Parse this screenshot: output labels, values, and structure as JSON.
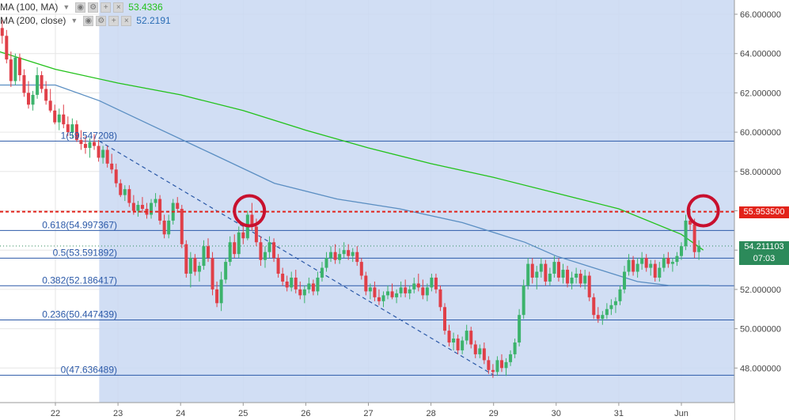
{
  "legend": [
    {
      "label": "MA (100, MA)",
      "value": "53.4336",
      "color": "#22c21a"
    },
    {
      "label": "MA (200, close)",
      "value": "52.2191",
      "color": "#2a6db5"
    }
  ],
  "price_tags": {
    "red": {
      "text": "55.953500",
      "color": "#e2231a"
    },
    "last": {
      "text": "54.211103",
      "color": "#2c8a5a"
    },
    "timer": {
      "text": "07:03",
      "color": "#2c8a5a"
    }
  },
  "chart_data": {
    "type": "candlestick",
    "y_axis": {
      "ticks": [
        48,
        50,
        52,
        54,
        56,
        58,
        60,
        62,
        64,
        66
      ],
      "tick_labels": [
        "48.000000",
        "50.000000",
        "52.000000",
        "54.000000",
        "56.000000",
        "58.000000",
        "60.000000",
        "62.000000",
        "64.000000",
        "66.000000"
      ]
    },
    "x_axis": {
      "ticks": [
        22,
        23,
        24,
        25,
        26,
        27,
        28,
        29,
        30,
        31,
        32
      ],
      "tick_labels": [
        "22",
        "23",
        "24",
        "25",
        "26",
        "27",
        "28",
        "29",
        "30",
        "31",
        "Jun"
      ],
      "range": [
        21.1,
        32.6
      ]
    },
    "ylim": [
      46.8,
      66.6
    ],
    "fibonacci": [
      {
        "label": "1(59.547208)",
        "value": 59.547208
      },
      {
        "label": "0.618(54.997367)",
        "value": 54.997367
      },
      {
        "label": "0.5(53.591892)",
        "value": 53.591892
      },
      {
        "label": "0.382(52.186417)",
        "value": 52.186417
      },
      {
        "label": "0.236(50.447439)",
        "value": 50.447439
      },
      {
        "label": "0(47.636489)",
        "value": 47.636489
      }
    ],
    "resistance_level": 55.9535,
    "trendline": {
      "start": [
        22.7,
        59.55
      ],
      "end": [
        29.0,
        47.64
      ]
    },
    "highlight_circles": [
      {
        "x": 25.1,
        "y": 56.0
      },
      {
        "x": 32.35,
        "y": 56.0
      }
    ],
    "fib_zone_start": 22.7,
    "series": [
      {
        "name": "MA (100, MA)",
        "color": "#22c21a",
        "points": [
          [
            21.1,
            64.1
          ],
          [
            22.0,
            63.2
          ],
          [
            23.0,
            62.5
          ],
          [
            24.0,
            61.9
          ],
          [
            25.0,
            61.1
          ],
          [
            26.0,
            60.1
          ],
          [
            27.0,
            59.2
          ],
          [
            28.0,
            58.4
          ],
          [
            29.0,
            57.7
          ],
          [
            30.0,
            56.9
          ],
          [
            31.0,
            56.1
          ],
          [
            32.0,
            54.8
          ],
          [
            32.35,
            54.0
          ]
        ]
      },
      {
        "name": "MA (200, close)",
        "color": "#5a8ec2",
        "points": [
          [
            21.1,
            62.4
          ],
          [
            22.0,
            62.4
          ],
          [
            22.7,
            61.6
          ],
          [
            23.5,
            60.4
          ],
          [
            24.5,
            58.9
          ],
          [
            25.5,
            57.4
          ],
          [
            26.5,
            56.6
          ],
          [
            27.5,
            56.1
          ],
          [
            28.5,
            55.4
          ],
          [
            29.5,
            54.4
          ],
          [
            30.0,
            53.7
          ],
          [
            30.7,
            53.0
          ],
          [
            31.3,
            52.4
          ],
          [
            31.8,
            52.2
          ],
          [
            32.45,
            52.2
          ]
        ]
      }
    ],
    "candles": [
      [
        21.15,
        65.3,
        65.7,
        64.5,
        64.9
      ],
      [
        21.22,
        64.9,
        65.2,
        63.5,
        63.7
      ],
      [
        21.29,
        63.7,
        64.1,
        62.3,
        62.6
      ],
      [
        21.36,
        62.6,
        64.0,
        62.4,
        63.8
      ],
      [
        21.43,
        63.8,
        64.0,
        62.6,
        62.9
      ],
      [
        21.5,
        62.9,
        63.2,
        61.8,
        62.0
      ],
      [
        21.57,
        62.0,
        62.6,
        61.2,
        61.4
      ],
      [
        21.64,
        61.4,
        62.1,
        61.1,
        61.9
      ],
      [
        21.71,
        61.9,
        63.3,
        61.7,
        62.9
      ],
      [
        21.78,
        62.9,
        63.1,
        62.0,
        62.2
      ],
      [
        21.85,
        62.2,
        62.6,
        61.4,
        61.6
      ],
      [
        21.92,
        61.6,
        62.2,
        61.0,
        61.1
      ],
      [
        21.99,
        61.1,
        61.4,
        60.4,
        60.5
      ],
      [
        22.06,
        60.5,
        61.2,
        60.1,
        60.9
      ],
      [
        22.13,
        60.9,
        61.4,
        60.2,
        60.4
      ],
      [
        22.2,
        60.4,
        60.8,
        59.8,
        60.0
      ],
      [
        22.27,
        60.0,
        60.7,
        59.7,
        60.4
      ],
      [
        22.34,
        60.4,
        60.6,
        59.5,
        59.6
      ],
      [
        22.41,
        59.6,
        60.1,
        59.1,
        59.4
      ],
      [
        22.48,
        59.4,
        59.8,
        58.9,
        59.2
      ],
      [
        22.55,
        59.2,
        59.7,
        58.7,
        59.5
      ],
      [
        22.62,
        59.5,
        59.9,
        59.1,
        59.3
      ],
      [
        22.69,
        59.3,
        59.6,
        58.5,
        58.7
      ],
      [
        22.76,
        58.7,
        59.3,
        58.4,
        59.1
      ],
      [
        22.83,
        59.1,
        59.3,
        58.2,
        58.4
      ],
      [
        22.9,
        58.4,
        58.9,
        57.9,
        58.1
      ],
      [
        22.97,
        58.1,
        58.4,
        57.2,
        57.4
      ],
      [
        23.04,
        57.4,
        57.6,
        56.7,
        56.8
      ],
      [
        23.11,
        56.8,
        57.3,
        56.5,
        57.1
      ],
      [
        23.18,
        57.1,
        57.3,
        56.2,
        56.4
      ],
      [
        23.25,
        56.4,
        56.8,
        55.8,
        56.0
      ],
      [
        23.32,
        56.0,
        56.5,
        55.7,
        56.3
      ],
      [
        23.39,
        56.3,
        56.7,
        55.9,
        56.1
      ],
      [
        23.46,
        56.1,
        56.4,
        55.6,
        55.8
      ],
      [
        23.53,
        55.8,
        56.6,
        55.6,
        56.4
      ],
      [
        23.6,
        56.4,
        56.9,
        56.2,
        56.6
      ],
      [
        23.67,
        56.6,
        56.8,
        55.3,
        55.5
      ],
      [
        23.74,
        55.5,
        55.8,
        54.6,
        54.8
      ],
      [
        23.81,
        54.8,
        55.8,
        54.6,
        55.5
      ],
      [
        23.88,
        55.5,
        56.6,
        55.3,
        56.4
      ],
      [
        23.95,
        56.4,
        56.7,
        55.9,
        56.1
      ],
      [
        24.02,
        56.1,
        56.3,
        54.1,
        54.3
      ],
      [
        24.09,
        54.3,
        54.5,
        52.6,
        52.8
      ],
      [
        24.16,
        52.8,
        53.9,
        52.1,
        53.6
      ],
      [
        24.23,
        53.6,
        53.8,
        52.7,
        52.9
      ],
      [
        24.3,
        52.9,
        53.4,
        52.4,
        53.2
      ],
      [
        24.37,
        53.2,
        54.5,
        53.0,
        54.2
      ],
      [
        24.44,
        54.2,
        54.6,
        53.4,
        53.6
      ],
      [
        24.51,
        53.6,
        53.9,
        51.7,
        52.0
      ],
      [
        24.58,
        52.0,
        52.4,
        51.1,
        51.3
      ],
      [
        24.65,
        51.3,
        52.9,
        50.9,
        52.5
      ],
      [
        24.72,
        52.5,
        53.6,
        52.3,
        53.4
      ],
      [
        24.79,
        53.4,
        54.7,
        53.2,
        54.4
      ],
      [
        24.86,
        54.4,
        54.8,
        53.6,
        53.8
      ],
      [
        24.93,
        53.8,
        55.2,
        53.6,
        54.9
      ],
      [
        25.0,
        54.9,
        55.4,
        54.3,
        54.6
      ],
      [
        25.07,
        54.6,
        56.0,
        54.5,
        55.8
      ],
      [
        25.14,
        55.8,
        56.4,
        55.0,
        55.2
      ],
      [
        25.21,
        55.2,
        55.6,
        54.2,
        54.4
      ],
      [
        25.28,
        54.4,
        54.7,
        53.2,
        53.5
      ],
      [
        25.35,
        53.5,
        54.2,
        53.1,
        53.9
      ],
      [
        25.42,
        53.9,
        54.7,
        53.6,
        54.4
      ],
      [
        25.49,
        54.4,
        54.6,
        53.4,
        53.6
      ],
      [
        25.56,
        53.6,
        53.8,
        52.6,
        52.8
      ],
      [
        25.63,
        52.8,
        53.1,
        52.2,
        52.4
      ],
      [
        25.7,
        52.4,
        52.7,
        51.9,
        52.1
      ],
      [
        25.77,
        52.1,
        52.9,
        51.9,
        52.6
      ],
      [
        25.84,
        52.6,
        53.0,
        51.8,
        52.0
      ],
      [
        25.91,
        52.0,
        52.4,
        51.5,
        51.7
      ],
      [
        25.98,
        51.7,
        52.2,
        51.3,
        52.0
      ],
      [
        26.05,
        52.0,
        52.6,
        51.8,
        52.3
      ],
      [
        26.12,
        52.3,
        52.5,
        51.7,
        51.9
      ],
      [
        26.19,
        51.9,
        52.9,
        51.7,
        52.6
      ],
      [
        26.26,
        52.6,
        53.4,
        52.4,
        53.1
      ],
      [
        26.33,
        53.1,
        53.9,
        52.9,
        53.6
      ],
      [
        26.4,
        53.6,
        54.2,
        53.4,
        53.9
      ],
      [
        26.47,
        53.9,
        54.3,
        53.3,
        53.5
      ],
      [
        26.54,
        53.5,
        54.1,
        53.3,
        53.8
      ],
      [
        26.61,
        53.8,
        54.4,
        53.6,
        54.0
      ],
      [
        26.68,
        54.0,
        54.3,
        53.5,
        53.7
      ],
      [
        26.75,
        53.7,
        54.1,
        53.4,
        53.9
      ],
      [
        26.82,
        53.9,
        54.2,
        53.2,
        53.4
      ],
      [
        26.89,
        53.4,
        53.6,
        52.5,
        52.7
      ],
      [
        26.96,
        52.7,
        52.9,
        51.7,
        51.9
      ],
      [
        27.03,
        51.9,
        52.3,
        51.5,
        52.1
      ],
      [
        27.1,
        52.1,
        52.4,
        51.4,
        51.6
      ],
      [
        27.17,
        51.6,
        52.0,
        51.2,
        51.4
      ],
      [
        27.24,
        51.4,
        51.9,
        51.1,
        51.7
      ],
      [
        27.31,
        51.7,
        52.2,
        51.5,
        51.9
      ],
      [
        27.38,
        51.9,
        52.3,
        51.5,
        51.6
      ],
      [
        27.45,
        51.6,
        52.0,
        51.3,
        51.8
      ],
      [
        27.52,
        51.8,
        52.4,
        51.6,
        52.1
      ],
      [
        27.59,
        52.1,
        52.5,
        51.6,
        51.8
      ],
      [
        27.66,
        51.8,
        52.2,
        51.5,
        52.0
      ],
      [
        27.73,
        52.0,
        52.6,
        51.8,
        52.3
      ],
      [
        27.8,
        52.3,
        52.8,
        51.9,
        52.1
      ],
      [
        27.87,
        52.1,
        52.5,
        51.5,
        51.7
      ],
      [
        27.94,
        51.7,
        52.3,
        51.4,
        52.1
      ],
      [
        28.01,
        52.1,
        52.8,
        51.9,
        52.6
      ],
      [
        28.08,
        52.6,
        52.8,
        51.8,
        52.0
      ],
      [
        28.15,
        52.0,
        52.2,
        50.9,
        51.1
      ],
      [
        28.22,
        51.1,
        51.3,
        49.7,
        49.9
      ],
      [
        28.29,
        49.9,
        50.2,
        49.1,
        49.3
      ],
      [
        28.36,
        49.3,
        49.8,
        48.9,
        49.5
      ],
      [
        28.43,
        49.5,
        49.7,
        48.7,
        48.9
      ],
      [
        28.5,
        48.9,
        49.6,
        48.7,
        49.4
      ],
      [
        28.57,
        49.4,
        50.2,
        49.2,
        49.9
      ],
      [
        28.64,
        49.9,
        50.1,
        49.0,
        49.2
      ],
      [
        28.71,
        49.2,
        49.4,
        48.5,
        48.7
      ],
      [
        28.78,
        48.7,
        49.2,
        48.5,
        49.0
      ],
      [
        28.85,
        49.0,
        49.3,
        48.2,
        48.4
      ],
      [
        28.92,
        48.4,
        48.6,
        47.7,
        47.9
      ],
      [
        28.99,
        47.9,
        48.2,
        47.5,
        47.8
      ],
      [
        29.06,
        47.8,
        48.6,
        47.6,
        48.4
      ],
      [
        29.13,
        48.4,
        48.7,
        47.8,
        48.0
      ],
      [
        29.2,
        48.0,
        48.5,
        47.6,
        48.3
      ],
      [
        29.27,
        48.3,
        48.9,
        48.1,
        48.7
      ],
      [
        29.34,
        48.7,
        49.5,
        48.5,
        49.3
      ],
      [
        29.41,
        49.3,
        51.0,
        49.1,
        50.7
      ],
      [
        29.48,
        50.7,
        52.5,
        50.5,
        52.2
      ],
      [
        29.55,
        52.2,
        53.6,
        52.0,
        53.3
      ],
      [
        29.62,
        53.3,
        53.6,
        52.3,
        52.6
      ],
      [
        29.69,
        52.6,
        53.2,
        52.0,
        52.9
      ],
      [
        29.76,
        52.9,
        53.6,
        52.6,
        53.3
      ],
      [
        29.83,
        53.3,
        53.5,
        52.2,
        52.4
      ],
      [
        29.9,
        52.4,
        53.1,
        52.2,
        52.8
      ],
      [
        29.97,
        52.8,
        53.7,
        52.6,
        53.4
      ],
      [
        30.04,
        53.4,
        53.6,
        52.4,
        52.6
      ],
      [
        30.11,
        52.6,
        53.3,
        52.3,
        53.0
      ],
      [
        30.18,
        53.0,
        53.2,
        52.1,
        52.3
      ],
      [
        30.25,
        52.3,
        52.9,
        52.0,
        52.6
      ],
      [
        30.32,
        52.6,
        53.1,
        52.3,
        52.8
      ],
      [
        30.39,
        52.8,
        53.0,
        52.1,
        52.3
      ],
      [
        30.46,
        52.3,
        53.0,
        52.0,
        52.7
      ],
      [
        30.53,
        52.7,
        52.9,
        51.4,
        51.6
      ],
      [
        30.6,
        51.6,
        51.8,
        50.5,
        50.7
      ],
      [
        30.67,
        50.7,
        51.1,
        50.3,
        50.5
      ],
      [
        30.74,
        50.5,
        50.9,
        50.2,
        50.7
      ],
      [
        30.81,
        50.7,
        51.3,
        50.5,
        51.0
      ],
      [
        30.88,
        51.0,
        51.5,
        50.7,
        51.2
      ],
      [
        30.95,
        51.2,
        51.6,
        50.8,
        51.4
      ],
      [
        31.02,
        51.4,
        52.2,
        51.2,
        52.0
      ],
      [
        31.09,
        52.0,
        53.2,
        51.8,
        52.9
      ],
      [
        31.16,
        52.9,
        53.8,
        52.7,
        53.5
      ],
      [
        31.23,
        53.5,
        53.7,
        52.7,
        52.9
      ],
      [
        31.3,
        52.9,
        53.6,
        52.6,
        53.3
      ],
      [
        31.37,
        53.3,
        53.9,
        53.0,
        53.6
      ],
      [
        31.44,
        53.6,
        53.8,
        52.9,
        53.1
      ],
      [
        31.51,
        53.1,
        53.5,
        52.7,
        53.3
      ],
      [
        31.58,
        53.3,
        53.5,
        52.4,
        52.6
      ],
      [
        31.65,
        52.6,
        53.4,
        52.4,
        53.1
      ],
      [
        31.72,
        53.1,
        53.8,
        52.9,
        53.6
      ],
      [
        31.79,
        53.6,
        53.9,
        53.1,
        53.3
      ],
      [
        31.86,
        53.3,
        53.6,
        52.9,
        53.4
      ],
      [
        31.93,
        53.4,
        53.9,
        53.2,
        53.7
      ],
      [
        32.0,
        53.7,
        54.4,
        53.5,
        54.2
      ],
      [
        32.07,
        54.2,
        55.8,
        54.0,
        55.5
      ],
      [
        32.14,
        55.5,
        56.1,
        55.0,
        55.3
      ],
      [
        32.21,
        55.3,
        55.6,
        53.6,
        53.9
      ],
      [
        32.28,
        53.9,
        54.5,
        53.5,
        54.2
      ]
    ]
  }
}
